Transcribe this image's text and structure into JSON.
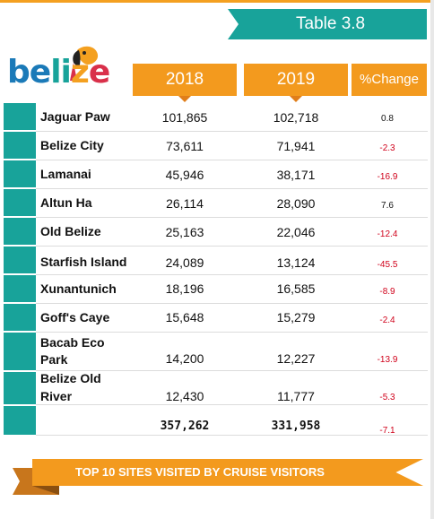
{
  "table_tag": "Table 3.8",
  "logo_text": "belize",
  "headers": {
    "y2018": "2018",
    "y2019": "2019",
    "change": "%Change"
  },
  "rows": [
    {
      "site": "Jaguar Paw",
      "v2018": "101,865",
      "v2019": "102,718",
      "change": "0.8"
    },
    {
      "site": "Belize City",
      "v2018": "73,611",
      "v2019": "71,941",
      "change": "-2.3"
    },
    {
      "site": "Lamanai",
      "v2018": "45,946",
      "v2019": "38,171",
      "change": "-16.9"
    },
    {
      "site": "Altun Ha",
      "v2018": "26,114",
      "v2019": "28,090",
      "change": "7.6"
    },
    {
      "site": "Old Belize",
      "v2018": "25,163",
      "v2019": "22,046",
      "change": "-12.4"
    },
    {
      "site": "Starfish Island",
      "v2018": "24,089",
      "v2019": "13,124",
      "change": "-45.5"
    },
    {
      "site": "Xunantunich",
      "v2018": "18,196",
      "v2019": "16,585",
      "change": "-8.9"
    },
    {
      "site": "Goff's Caye",
      "v2018": "15,648",
      "v2019": "15,279",
      "change": "-2.4"
    },
    {
      "site_line1": "Bacab Eco",
      "site_line2": "Park",
      "v2018": "14,200",
      "v2019": "12,227",
      "change": "-13.9"
    },
    {
      "site_line1": "Belize Old",
      "site_line2": "River",
      "v2018": "12,430",
      "v2019": "11,777",
      "change": "-5.3"
    }
  ],
  "total": {
    "v2018": "357,262",
    "v2019": "331,958",
    "change": "-7.1"
  },
  "banner_text": "TOP 10 SITES VISITED BY CRUISE VISITORS",
  "colors": {
    "teal": "#18a39a",
    "orange": "#f39a1e",
    "negative": "#d0021b",
    "positive": "#111111"
  }
}
